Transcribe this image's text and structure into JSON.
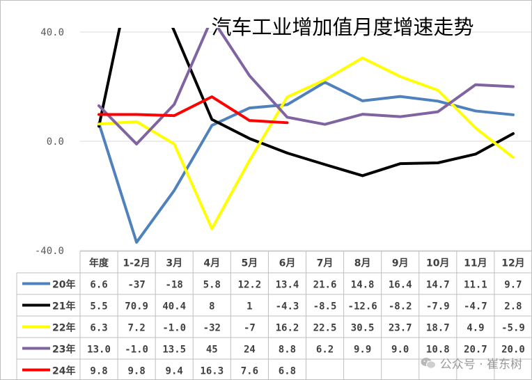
{
  "chart_data": {
    "type": "line",
    "title": "汽车工业增加值月度增速走势",
    "xlabel": "",
    "ylabel": "",
    "ylim": [
      -40,
      40
    ],
    "yticks": [
      "40.0",
      "0.0",
      "-40.0"
    ],
    "categories": [
      "年度",
      "1-2月",
      "3月",
      "4月",
      "5月",
      "6月",
      "7月",
      "8月",
      "9月",
      "10月",
      "11月",
      "12月"
    ],
    "table_header": "",
    "series": [
      {
        "name": "20年",
        "color": "#4f81bd",
        "values": [
          6.6,
          -37,
          -18,
          5.8,
          12.2,
          13.4,
          21.6,
          14.8,
          16.4,
          14.7,
          11.1,
          9.7
        ],
        "labels": [
          "6.6",
          "-37",
          "-18",
          "5.8",
          "12.2",
          "13.4",
          "21.6",
          "14.8",
          "16.4",
          "14.7",
          "11.1",
          "9.7"
        ]
      },
      {
        "name": "21年",
        "color": "#000000",
        "values": [
          5.5,
          70.9,
          40.4,
          8,
          1,
          -4.3,
          -8.5,
          -12.6,
          -8.2,
          -7.9,
          -4.7,
          2.8
        ],
        "labels": [
          "5.5",
          "70.9",
          "40.4",
          "8",
          "1",
          "-4.3",
          "-8.5",
          "-12.6",
          "-8.2",
          "-7.9",
          "-4.7",
          "2.8"
        ]
      },
      {
        "name": "22年",
        "color": "#ffff00",
        "values": [
          6.3,
          7.2,
          -1.0,
          -32,
          -7,
          16.2,
          22.5,
          30.5,
          23.7,
          18.7,
          4.9,
          -5.9
        ],
        "labels": [
          "6.3",
          "7.2",
          "-1.0",
          "-32",
          "-7",
          "16.2",
          "22.5",
          "30.5",
          "23.7",
          "18.7",
          "4.9",
          "-5.9"
        ]
      },
      {
        "name": "23年",
        "color": "#8064a2",
        "values": [
          13.0,
          -1.0,
          13.5,
          45,
          24,
          8.8,
          6.2,
          9.9,
          9.0,
          10.8,
          20.7,
          20.0
        ],
        "labels": [
          "13.0",
          "-1.0",
          "13.5",
          "45",
          "24",
          "8.8",
          "6.2",
          "9.9",
          "9.0",
          "10.8",
          "20.7",
          "20.0"
        ]
      },
      {
        "name": "24年",
        "color": "#ff0000",
        "values": [
          9.8,
          9.8,
          9.4,
          16.3,
          7.6,
          6.8,
          null,
          null,
          null,
          null,
          null,
          null
        ],
        "labels": [
          "9.8",
          "9.8",
          "9.4",
          "16.3",
          "7.6",
          "6.8",
          "",
          "",
          "",
          "",
          "",
          ""
        ]
      }
    ]
  },
  "watermark": {
    "text": "公众号 · 崔东树",
    "icon": "wechat-icon"
  }
}
